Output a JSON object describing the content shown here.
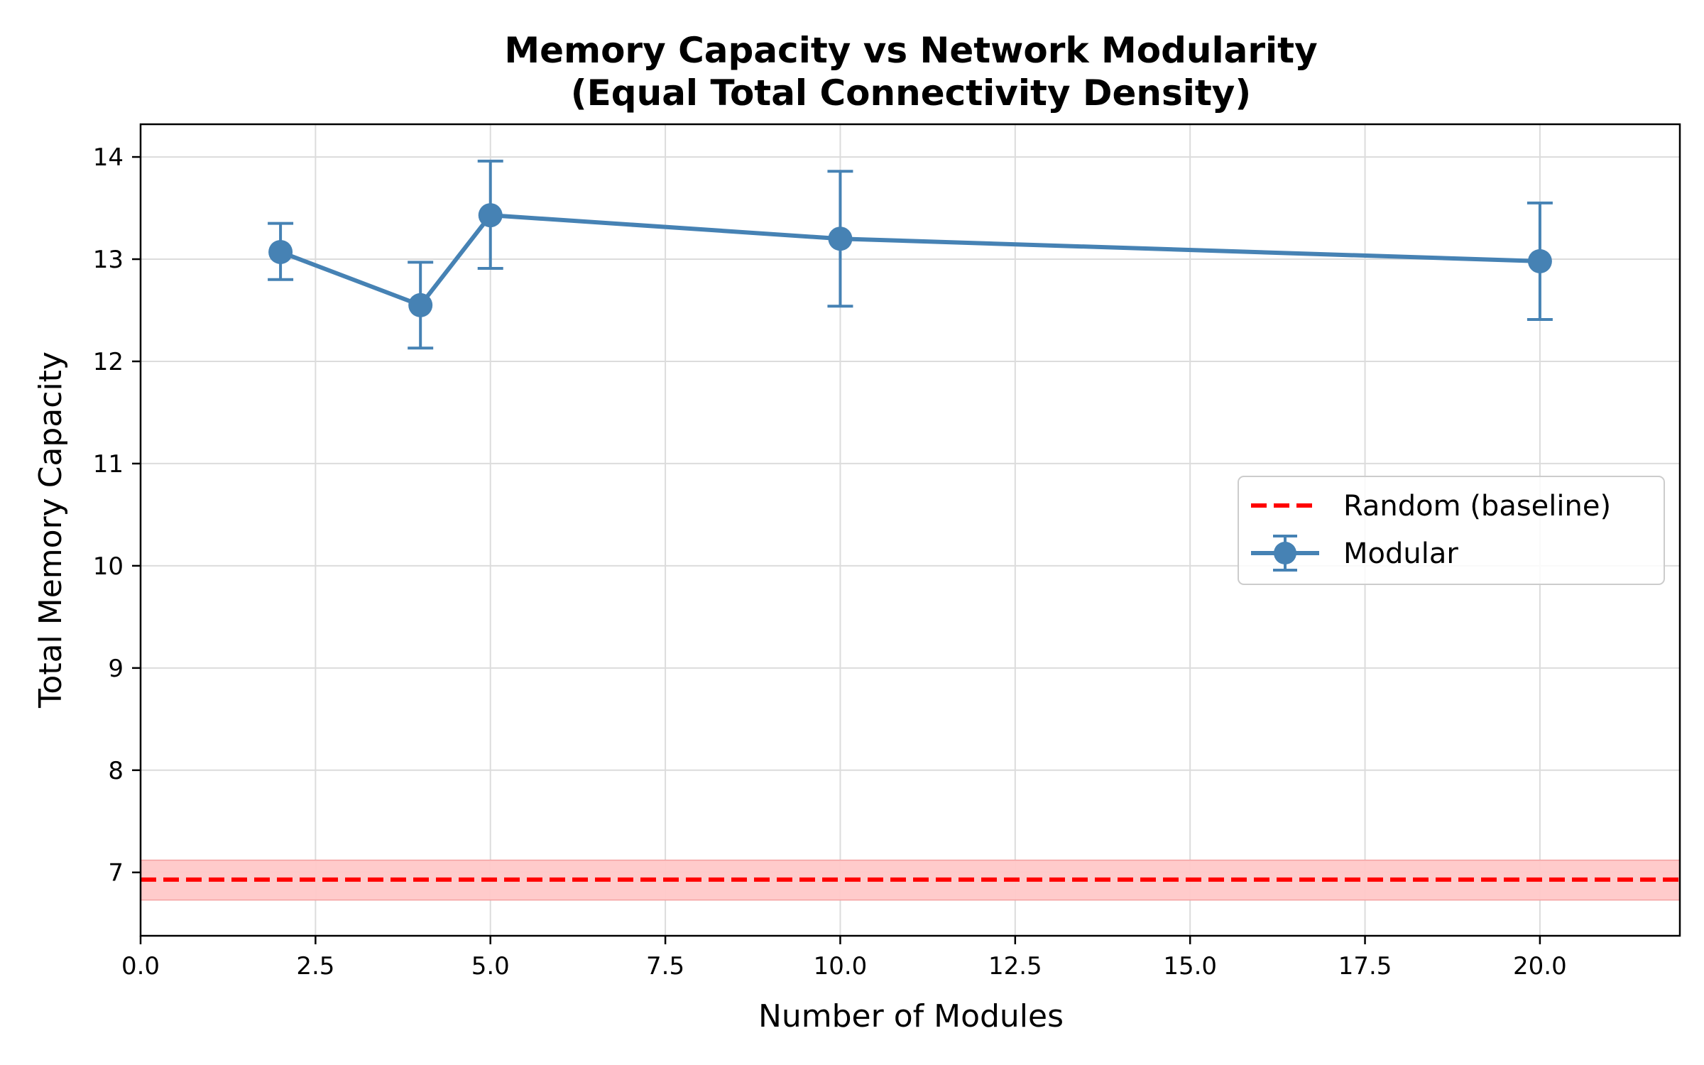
{
  "chart_data": {
    "type": "line",
    "title": "Memory Capacity vs Network Modularity",
    "subtitle": "(Equal Total Connectivity Density)",
    "xlabel": "Number of Modules",
    "ylabel": "Total Memory Capacity",
    "xlim": [
      0,
      22
    ],
    "ylim": [
      6.38,
      14.32
    ],
    "x_ticks": [
      0.0,
      2.5,
      5.0,
      7.5,
      10.0,
      12.5,
      15.0,
      17.5,
      20.0
    ],
    "x_tick_labels": [
      "0.0",
      "2.5",
      "5.0",
      "7.5",
      "10.0",
      "12.5",
      "15.0",
      "17.5",
      "20.0"
    ],
    "y_ticks": [
      7,
      8,
      9,
      10,
      11,
      12,
      13,
      14
    ],
    "y_tick_labels": [
      "7",
      "8",
      "9",
      "10",
      "11",
      "12",
      "13",
      "14"
    ],
    "grid": true,
    "legend_position": "center-right",
    "series": [
      {
        "name": "Modular",
        "kind": "line-errorbar",
        "color": "#4682b4",
        "x": [
          2,
          4,
          5,
          10,
          20
        ],
        "y": [
          13.07,
          12.55,
          13.43,
          13.2,
          12.98
        ],
        "yerr_low": [
          12.8,
          12.13,
          12.91,
          12.54,
          12.41
        ],
        "yerr_high": [
          13.35,
          12.97,
          13.96,
          13.86,
          13.55
        ]
      },
      {
        "name": "Random (baseline)",
        "kind": "hline-band",
        "color": "#ff0000",
        "band_color": "#ffc8c8",
        "y": 6.93,
        "band": [
          6.73,
          7.12
        ]
      }
    ]
  }
}
